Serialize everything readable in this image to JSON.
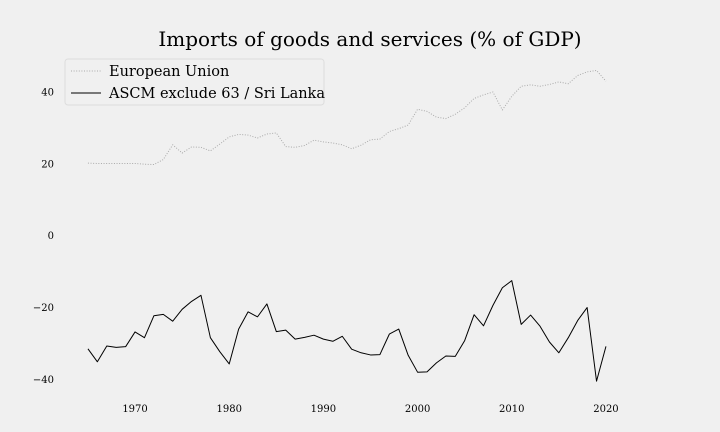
{
  "chart_data": {
    "type": "line",
    "title": "Imports of goods and services (% of GDP)",
    "xlabel": "",
    "ylabel": "",
    "xlim": [
      1963.2,
      2026.8
    ],
    "ylim": [
      -46.3,
      50.3
    ],
    "xticks": [
      1970,
      1980,
      1990,
      2000,
      2010,
      2020
    ],
    "yticks": [
      -40,
      -20,
      0,
      20,
      40
    ],
    "grid": false,
    "legend_position": "top-left",
    "background": "#f0f0f0",
    "x": [
      1965,
      1966,
      1967,
      1968,
      1969,
      1970,
      1971,
      1972,
      1973,
      1974,
      1975,
      1976,
      1977,
      1978,
      1979,
      1980,
      1981,
      1982,
      1983,
      1984,
      1985,
      1986,
      1987,
      1988,
      1989,
      1990,
      1991,
      1992,
      1993,
      1994,
      1995,
      1996,
      1997,
      1998,
      1999,
      2000,
      2001,
      2002,
      2003,
      2004,
      2005,
      2006,
      2007,
      2008,
      2009,
      2010,
      2011,
      2012,
      2013,
      2014,
      2015,
      2016,
      2017,
      2018,
      2019,
      2020
    ],
    "series": [
      {
        "name": "European Union",
        "color": "#aaaaaa",
        "style": "dotted",
        "values": [
          20.2,
          20.1,
          20.1,
          20.1,
          20.1,
          20.1,
          19.9,
          19.8,
          21.2,
          25.3,
          23.0,
          24.7,
          24.6,
          23.6,
          25.5,
          27.5,
          28.2,
          28.0,
          27.2,
          28.3,
          28.6,
          24.8,
          24.6,
          25.1,
          26.6,
          26.1,
          25.8,
          25.3,
          24.2,
          25.2,
          26.7,
          26.9,
          29.0,
          29.8,
          30.8,
          35.2,
          34.6,
          33.0,
          32.6,
          33.8,
          35.6,
          38.2,
          39.2,
          40.0,
          35.0,
          38.8,
          41.6,
          42.0,
          41.6,
          42.1,
          42.8,
          42.3,
          44.6,
          45.6,
          46.0,
          43.0
        ]
      },
      {
        "name": "ASCM exclude 63 / Sri Lanka",
        "color": "#000000",
        "style": "solid",
        "values": [
          -31.5,
          -35.1,
          -30.7,
          -31.1,
          -30.9,
          -26.8,
          -28.4,
          -22.3,
          -21.9,
          -23.8,
          -20.5,
          -18.3,
          -16.6,
          -28.4,
          -32.3,
          -35.7,
          -26.0,
          -21.2,
          -22.6,
          -19.0,
          -26.7,
          -26.3,
          -28.8,
          -28.3,
          -27.7,
          -28.8,
          -29.4,
          -28.0,
          -31.6,
          -32.6,
          -33.2,
          -33.1,
          -27.4,
          -26.0,
          -33.3,
          -38.0,
          -37.9,
          -35.4,
          -33.5,
          -33.6,
          -29.2,
          -22.0,
          -25.1,
          -19.4,
          -14.5,
          -12.5,
          -24.7,
          -22.1,
          -25.2,
          -29.6,
          -32.6,
          -28.4,
          -23.6,
          -20.0,
          -40.5,
          -30.8
        ]
      }
    ]
  }
}
